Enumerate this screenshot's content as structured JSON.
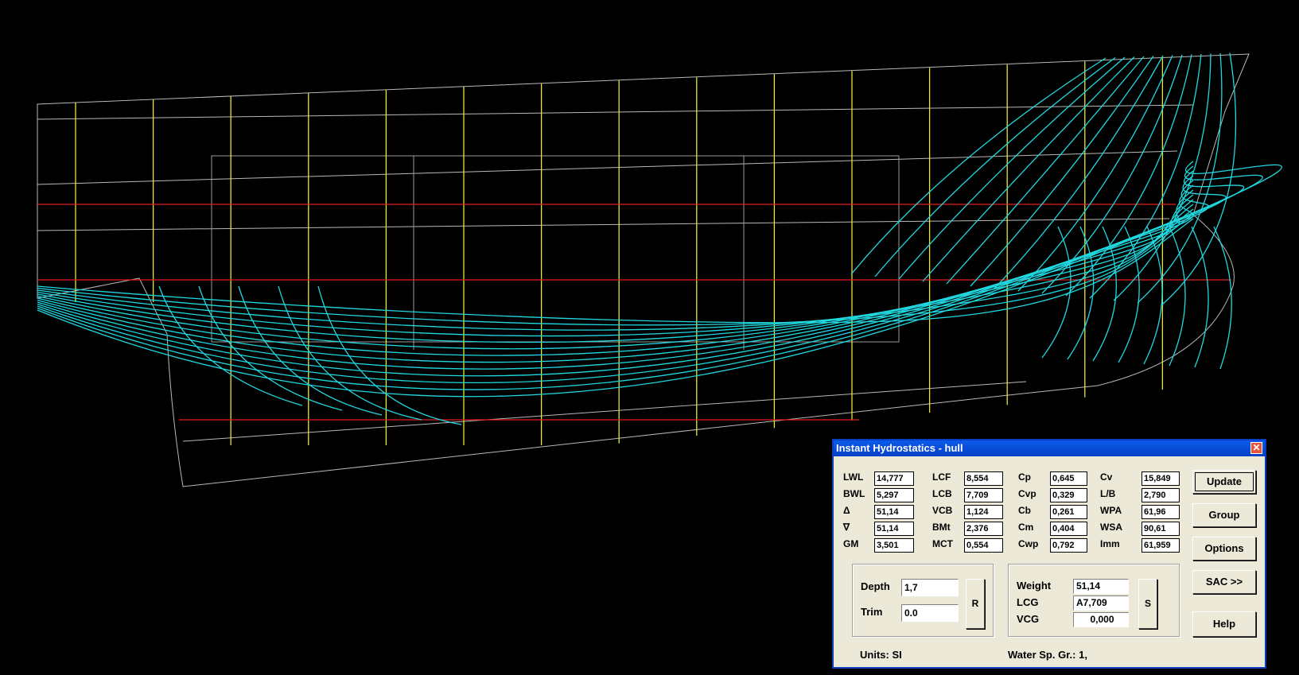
{
  "window": {
    "title": "Instant Hydrostatics - hull",
    "close_icon": "close-icon"
  },
  "columns": [
    [
      {
        "label": "LWL",
        "value": "14,777"
      },
      {
        "label": "BWL",
        "value": "5,297"
      },
      {
        "label": "Δ",
        "value": "51,14"
      },
      {
        "label": "∇",
        "value": "51,14"
      },
      {
        "label": "GM",
        "value": "3,501"
      }
    ],
    [
      {
        "label": "LCF",
        "value": "8,554"
      },
      {
        "label": "LCB",
        "value": "7,709"
      },
      {
        "label": "VCB",
        "value": "1,124"
      },
      {
        "label": "BMt",
        "value": "2,376"
      },
      {
        "label": "MCT",
        "value": "0,554"
      }
    ],
    [
      {
        "label": "Cp",
        "value": "0,645"
      },
      {
        "label": "Cvp",
        "value": "0,329"
      },
      {
        "label": "Cb",
        "value": "0,261"
      },
      {
        "label": "Cm",
        "value": "0,404"
      },
      {
        "label": "Cwp",
        "value": "0,792"
      }
    ],
    [
      {
        "label": "Cv",
        "value": "15,849"
      },
      {
        "label": "L/B",
        "value": "2,790"
      },
      {
        "label": "WPA",
        "value": "61,96"
      },
      {
        "label": "WSA",
        "value": "90,61"
      },
      {
        "label": "Imm",
        "value": "61,959"
      }
    ]
  ],
  "depth": {
    "label": "Depth",
    "value": "1,7"
  },
  "trim": {
    "label": "Trim",
    "value": "0.0"
  },
  "r_button": "R",
  "weight": {
    "label": "Weight",
    "value": "51,14"
  },
  "lcg": {
    "label": "LCG",
    "value": "A7,709"
  },
  "vcg": {
    "label": "VCG",
    "value": "0,000"
  },
  "s_button": "S",
  "buttons": {
    "update": "Update",
    "group": "Group",
    "options": "Options",
    "sac": "SAC >>",
    "help": "Help"
  },
  "units": "Units: SI",
  "water": "Water Sp. Gr.: 1,",
  "colors": {
    "stations": "#e8e83a",
    "waterlines": "#e02020",
    "sections": "#20d8e0",
    "outline": "#b8b8b8",
    "titlebar": "#0a4fd8"
  }
}
